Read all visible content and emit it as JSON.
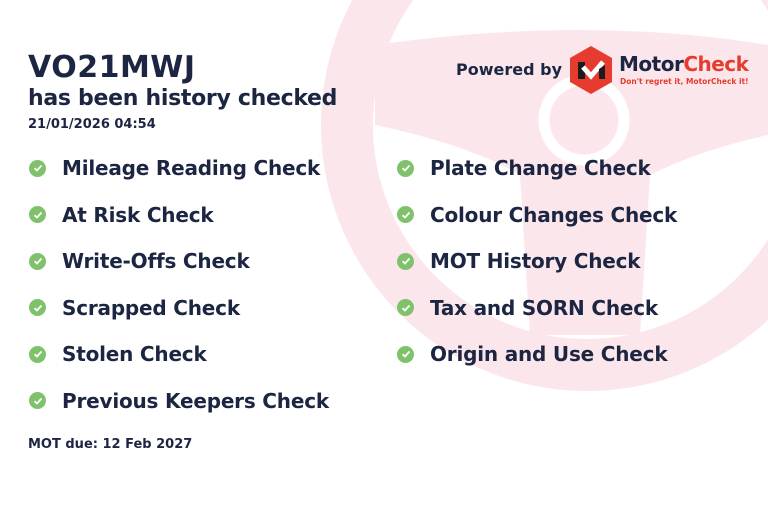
{
  "vehicle": {
    "plate": "VO21MWJ",
    "subtitle": "has been history checked",
    "checked_at": "21/01/2026 04:54"
  },
  "branding": {
    "powered_by": "Powered by",
    "brand_part1": "Motor",
    "brand_part2": "Check",
    "tagline": "Don't regret it, MotorCheck it!",
    "brand_color": "#e63c2f"
  },
  "checks_left": [
    "Mileage Reading Check",
    "At Risk Check",
    "Write-Offs Check",
    "Scrapped Check",
    "Stolen Check",
    "Previous Keepers Check"
  ],
  "checks_right": [
    "Plate Change Check",
    "Colour Changes Check",
    "MOT History Check",
    "Tax and SORN Check",
    "Origin and Use Check"
  ],
  "check_icon": "check-circle-icon",
  "check_color": "#7fc26b",
  "footer": {
    "mot_due": "MOT due: 12 Feb 2027"
  }
}
